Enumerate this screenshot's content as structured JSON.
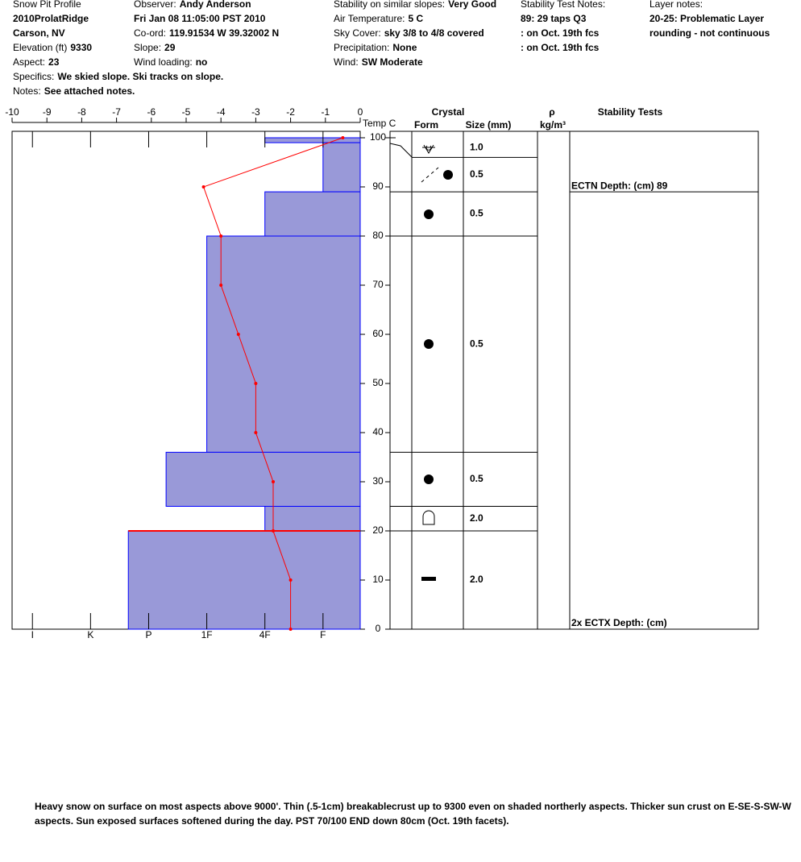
{
  "header": {
    "columns": [
      [
        {
          "label": "Snow Pit Profile"
        },
        {
          "value": "2010ProlatRidge"
        },
        {
          "value": "Carson, NV"
        },
        {
          "label": "Elevation (ft)",
          "value": "9330"
        },
        {
          "label": "Aspect:",
          "value": "23"
        },
        {
          "label": "Specifics:",
          "value": "We skied slope. Ski tracks on slope."
        },
        {
          "label": "Notes:",
          "value": "See attached notes."
        }
      ],
      [
        {
          "label": "Observer:",
          "value": "Andy Anderson"
        },
        {
          "value": "Fri Jan 08 11:05:00 PST 2010"
        },
        {
          "label": "Co-ord:",
          "value": "119.91534 W 39.32002 N"
        },
        {
          "label": "Slope:",
          "value": "29"
        },
        {
          "label": "Wind loading:",
          "value": "no"
        }
      ],
      [
        {
          "label": "Stability on similar slopes:",
          "value": "Very Good"
        },
        {
          "label": "Air Temperature:",
          "value": "5 C"
        },
        {
          "label": "Sky Cover:",
          "value": "sky 3/8 to 4/8 covered"
        },
        {
          "label": "Precipitation:",
          "value": "None"
        },
        {
          "label": "Wind:",
          "value": "SW Moderate"
        }
      ],
      [
        {
          "label": "Stability Test Notes:"
        },
        {
          "value": "89: 29 taps Q3"
        },
        {
          "value": ": on Oct. 19th fcs"
        },
        {
          "value": ": on Oct. 19th fcs"
        }
      ],
      [
        {
          "label": "Layer notes:"
        },
        {
          "value": "20-25: Problematic Layer"
        },
        {
          "value": "rounding - not continuous"
        }
      ]
    ]
  },
  "chart_data": {
    "type": "snow-profile",
    "temperature": {
      "label": "Temp C",
      "color": "#ff0000",
      "xlim": [
        -10,
        0
      ],
      "xticks": [
        -10,
        -9,
        -8,
        -7,
        -6,
        -5,
        -4,
        -3,
        -2,
        -1,
        0
      ],
      "depth": [
        100,
        90,
        80,
        70,
        60,
        50,
        40,
        30,
        20,
        10,
        0
      ],
      "values": [
        -0.5,
        -4.5,
        -4,
        -4,
        -3.5,
        -3,
        -3,
        -2.5,
        -2.5,
        -2,
        -2
      ]
    },
    "depth_axis": {
      "ylim": [
        0,
        100
      ],
      "yticks": [
        0,
        10,
        20,
        30,
        40,
        50,
        60,
        70,
        80,
        90,
        100
      ]
    },
    "hardness": {
      "color": "#9999d8",
      "xlim": [
        0.36,
        6.35
      ],
      "xticks": [
        {
          "value": 1,
          "label": "F"
        },
        {
          "value": 2,
          "label": "4F"
        },
        {
          "value": 3,
          "label": "1F"
        },
        {
          "value": 4,
          "label": "P"
        },
        {
          "value": 5,
          "label": "K"
        },
        {
          "value": 6,
          "label": "I"
        }
      ],
      "layers": [
        {
          "top": 100,
          "bottom": 99,
          "value": 2
        },
        {
          "top": 99,
          "bottom": 89,
          "value": 1
        },
        {
          "top": 89,
          "bottom": 80,
          "value": 2
        },
        {
          "top": 80,
          "bottom": 36,
          "value": 3
        },
        {
          "top": 36,
          "bottom": 25,
          "value": 3.7
        },
        {
          "top": 25,
          "bottom": 20,
          "value": 2
        },
        {
          "top": 20,
          "bottom": 0,
          "value": 4.35
        }
      ]
    },
    "layer_of_concern_depth": 20,
    "crystal_header": "Crystal",
    "form_header": "Form",
    "size_header": "Size (mm)",
    "density_header": "ρ",
    "density_unit": "kg/m³",
    "stability_header": "Stability Tests",
    "crystal_layers": [
      {
        "top": 100,
        "bottom": 96,
        "size": "1.0"
      },
      {
        "top": 96,
        "bottom": 89,
        "size": "0.5"
      },
      {
        "top": 89,
        "bottom": 80,
        "size": "0.5"
      },
      {
        "top": 80,
        "bottom": 36,
        "size": "0.5"
      },
      {
        "top": 36,
        "bottom": 25,
        "size": "0.5"
      },
      {
        "top": 25,
        "bottom": 20,
        "size": "2.0"
      },
      {
        "top": 20,
        "bottom": 0,
        "size": "2.0"
      }
    ],
    "stability_tests": [
      {
        "text": "ECTN   Depth: (cm) 89",
        "depth": 89
      },
      {
        "text": "2x ECTX   Depth: (cm)"
      }
    ]
  },
  "footer": "Heavy snow on surface on most aspects above 9000'. Thin (.5-1cm) breakablecrust up to 9300 even on shaded northerly aspects. Thicker sun crust on E-SE-S-SW-W aspects. Sun exposed surfaces softened during the day. PST 70/100 END down 80cm (Oct. 19th facets)."
}
